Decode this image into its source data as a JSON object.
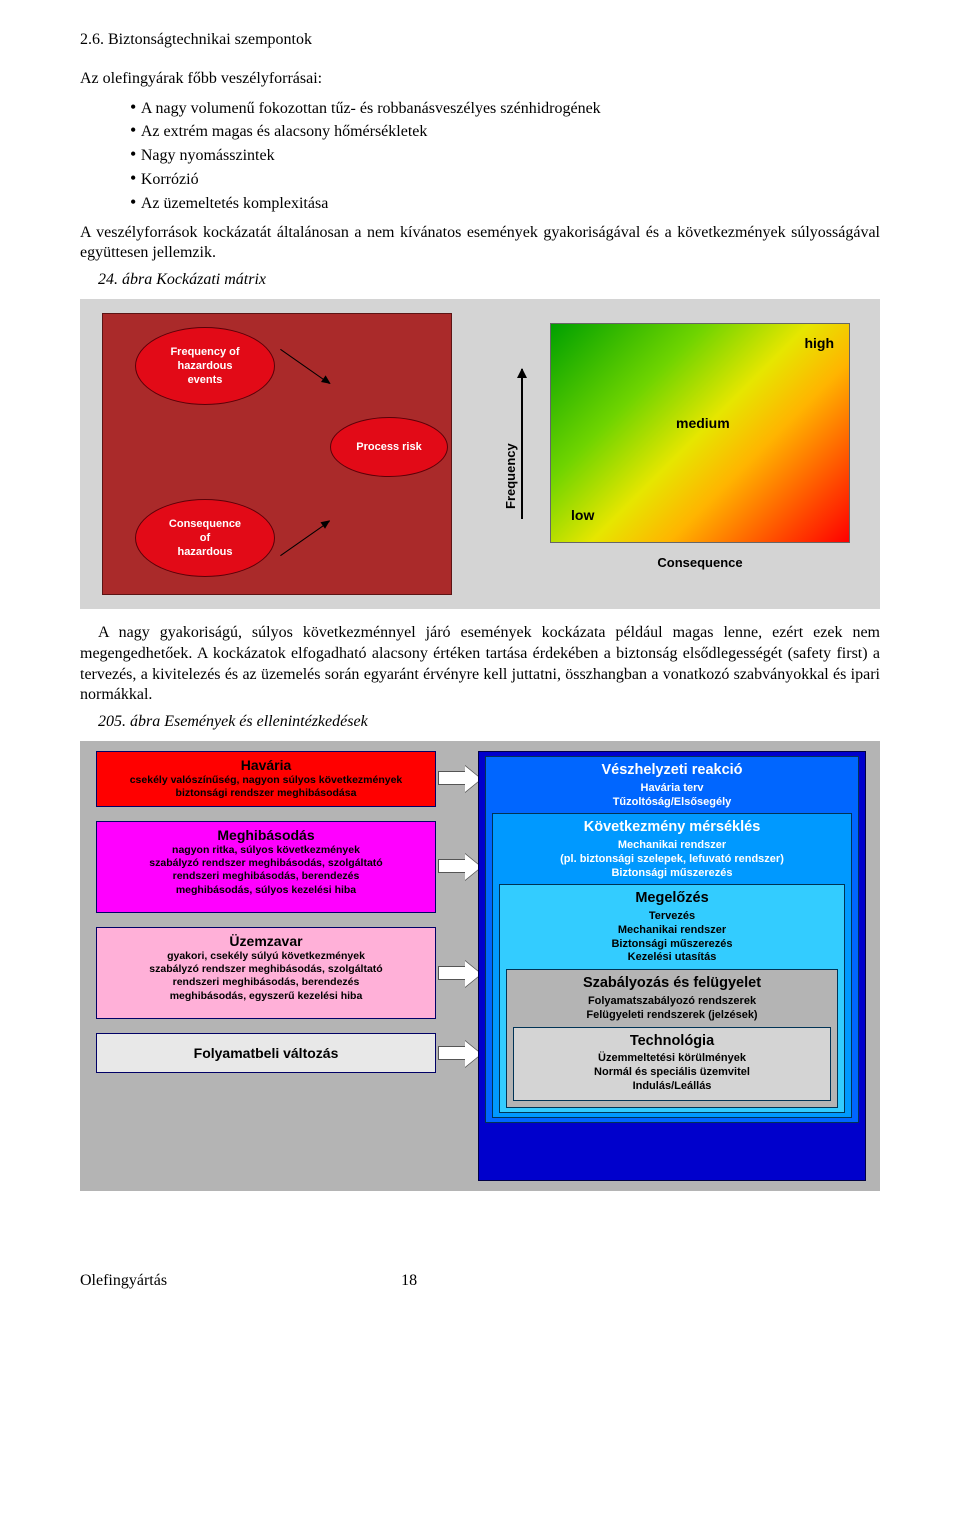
{
  "section": {
    "title": "2.6. Biztonságtechnikai szempontok",
    "intro": "Az olefingyárak főbb veszélyforrásai:",
    "bullets": [
      "A nagy volumenű fokozottan tűz- és robbanásveszélyes szénhidrogének",
      "Az extrém magas és alacsony hőmérsékletek",
      "Nagy nyomásszintek",
      "Korrózió",
      "Az üzemeltetés komplexitása"
    ],
    "para1": "A veszélyforrások kockázatát általánosan a nem kívánatos események gyakoriságával és a következmények súlyosságával együttesen jellemzik."
  },
  "fig24": {
    "caption": "24. ábra Kockázati mátrix",
    "ellipse_freq": "Frequency of\nhazardous\nevents",
    "ellipse_cons": "Consequence\nof\nhazardous",
    "ellipse_proc": "Process risk",
    "axis_y": "Frequency",
    "axis_x": "Consequence",
    "low": "low",
    "medium": "medium",
    "high": "high"
  },
  "body_para": "A nagy gyakoriságú, súlyos következménnyel járó események kockázata például magas lenne, ezért ezek nem megengedhetőek. A kockázatok elfogadható alacsony értéken tartása érdekében a biztonság elsődlegességét (safety first) a tervezés, a kivitelezés és az üzemelés során egyaránt érvényre kell juttatni, összhangban a vonatkozó szabványokkal és ipari normákkal.",
  "fig205": {
    "caption": "205. ábra Események és ellenintézkedések",
    "left": {
      "havaria": {
        "title": "Havária",
        "sub": "csekély valószínűség, nagyon súlyos következmények\nbiztonsági rendszer meghibásodása"
      },
      "meghib": {
        "title": "Meghibásodás",
        "sub": "nagyon ritka, súlyos következmények\nszabályzó rendszer meghibásodás, szolgáltató\nrendszeri meghibásodás, berendezés\nmeghibásodás, súlyos kezelési hiba"
      },
      "uzemzavar": {
        "title": "Üzemzavar",
        "sub": "gyakori, csekély súlyú következmények\nszabályzó rendszer meghibásodás, szolgáltató\nrendszeri meghibásodás, berendezés\nmeghibásodás, egyszerű kezelési hiba"
      },
      "folyamat": {
        "title": "Folyamatbeli változás"
      }
    },
    "right": {
      "veszh": {
        "title": "Vészhelyzeti reakció",
        "sub": "Havária terv\nTűzoltóság/Elsősegély"
      },
      "kovmers": {
        "title": "Következmény mérséklés",
        "sub": "Mechanikai rendszer\n(pl. biztonsági szelepek, lefuvató rendszer)\nBiztonsági műszerezés"
      },
      "megeloz": {
        "title": "Megelőzés",
        "sub": "Tervezés\nMechanikai rendszer\nBiztonsági műszerezés\nKezelési utasítás"
      },
      "szab": {
        "title": "Szabályozás és felügyelet",
        "sub": "Folyamatszabályozó rendszerek\nFelügyeleti rendszerek (jelzések)"
      },
      "tech": {
        "title": "Technológia",
        "sub": "Üzemmeltetési körülmények\nNormál és speciális üzemvitel\nIndulás/Leállás"
      }
    }
  },
  "footer": {
    "doc": "Olefingyártás",
    "page": "18"
  }
}
